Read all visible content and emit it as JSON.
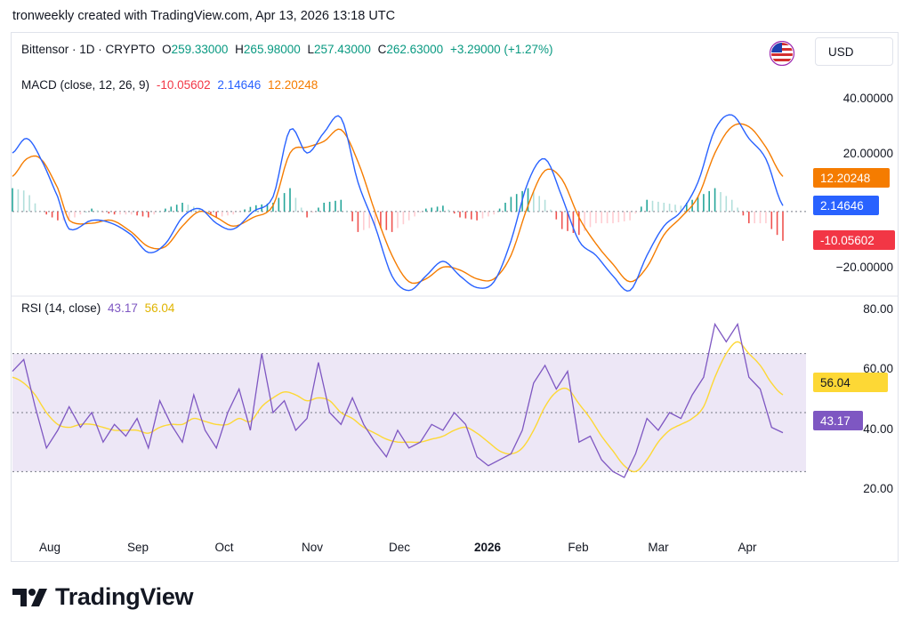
{
  "caption": "tronweekly created with TradingView.com, Apr 13, 2026 13:18 UTC",
  "header": {
    "symbol": "Bittensor · 1D · CRYPTO",
    "open_k": "O",
    "open": "259.33000",
    "high_k": "H",
    "high": "265.98000",
    "low_k": "L",
    "low": "257.43000",
    "close_k": "C",
    "close": "262.63000",
    "change": "+3.29000 (+1.27%)",
    "currency": "USD"
  },
  "colors": {
    "macd_line": "#2962ff",
    "signal_line": "#f57c00",
    "hist_pos_strong": "#26a69a",
    "hist_pos_weak": "#b2dfdb",
    "hist_neg_strong": "#ef5350",
    "hist_neg_weak": "#ffcdd2",
    "rsi_line": "#7e57c2",
    "rsi_ma": "#fdd835",
    "rsi_band": "#ede7f6",
    "up": "#089981",
    "down": "#f23645"
  },
  "macd": {
    "label": "MACD (close, 12, 26, 9)",
    "hist_value": "-10.05602",
    "macd_value": "2.14646",
    "signal_value": "12.20248",
    "axis_labels": [
      "40.00000",
      "20.00000",
      "−20.00000"
    ]
  },
  "rsi": {
    "label": "RSI (14, close)",
    "rsi_value": "43.17",
    "ma_value": "56.04",
    "axis_labels": [
      "80.00",
      "60.00",
      "40.00",
      "20.00"
    ]
  },
  "months": [
    "Aug",
    "Sep",
    "Oct",
    "Nov",
    "Dec",
    "2026",
    "Feb",
    "Mar",
    "Apr"
  ],
  "logo_text": "TradingView",
  "chart_data": [
    {
      "type": "line",
      "title": "MACD (close, 12, 26, 9)",
      "ylim": [
        -28,
        48
      ],
      "x_day_index": [
        0,
        5,
        10,
        16,
        20,
        28,
        35,
        42,
        48,
        54,
        60,
        66,
        72,
        78,
        85,
        92,
        98,
        104,
        110,
        116,
        122,
        128,
        134,
        140,
        146,
        152,
        158,
        164,
        170,
        176,
        182,
        188,
        194,
        200,
        206,
        212,
        218,
        224,
        230,
        236,
        242,
        248,
        254,
        260,
        266,
        272
      ],
      "series": [
        {
          "name": "MACD",
          "values": [
            20,
            25,
            18,
            5,
            -6,
            -3,
            -4,
            -8,
            -14,
            -11,
            -2,
            1,
            -4,
            -6,
            0,
            5,
            28,
            20,
            27,
            32,
            10,
            -5,
            -22,
            -27,
            -22,
            -17,
            -22,
            -26,
            -24,
            -10,
            10,
            18,
            5,
            -10,
            -15,
            -22,
            -27,
            -15,
            -5,
            0,
            10,
            28,
            33,
            25,
            18,
            2
          ],
          "latest": 2.14646
        },
        {
          "name": "Signal",
          "values": [
            12,
            18,
            18,
            8,
            -3,
            -4,
            -3,
            -7,
            -12,
            -12,
            -5,
            0,
            -2,
            -5,
            -2,
            2,
            20,
            22,
            24,
            28,
            17,
            0,
            -15,
            -24,
            -23,
            -19,
            -20,
            -23,
            -23,
            -15,
            2,
            14,
            11,
            -2,
            -11,
            -18,
            -24,
            -19,
            -8,
            -2,
            5,
            20,
            29,
            29,
            22,
            12
          ],
          "latest": 12.20248
        },
        {
          "name": "Histogram",
          "values": [
            8,
            7,
            0,
            -3,
            -3,
            1,
            -1,
            -1,
            -2,
            1,
            3,
            1,
            -2,
            -1,
            2,
            3,
            8,
            -2,
            3,
            4,
            -7,
            -5,
            -7,
            -3,
            1,
            2,
            -2,
            -3,
            -1,
            5,
            8,
            4,
            -6,
            -8,
            -4,
            -4,
            -3,
            4,
            3,
            2,
            5,
            8,
            4,
            -4,
            -4,
            -10
          ],
          "latest": -10.05602
        }
      ]
    },
    {
      "type": "line",
      "title": "RSI (14, close)",
      "ylim": [
        12,
        88
      ],
      "bands": [
        30,
        50,
        70
      ],
      "x_day_index": [
        0,
        4,
        8,
        12,
        16,
        20,
        24,
        28,
        32,
        36,
        40,
        44,
        48,
        52,
        56,
        60,
        64,
        68,
        72,
        76,
        80,
        84,
        88,
        92,
        96,
        100,
        104,
        108,
        112,
        116,
        120,
        124,
        128,
        132,
        136,
        140,
        144,
        148,
        152,
        156,
        160,
        164,
        168,
        172,
        176,
        180,
        184,
        188,
        192,
        196,
        200,
        204,
        208,
        212,
        216,
        220,
        224,
        228,
        232,
        236,
        240,
        244,
        248,
        252,
        256,
        260,
        264,
        268,
        272
      ],
      "series": [
        {
          "name": "RSI",
          "values": [
            64,
            68,
            52,
            38,
            44,
            52,
            45,
            50,
            40,
            46,
            42,
            48,
            38,
            54,
            46,
            40,
            56,
            44,
            38,
            50,
            58,
            44,
            70,
            50,
            54,
            44,
            48,
            67,
            50,
            46,
            55,
            46,
            40,
            35,
            44,
            38,
            40,
            46,
            44,
            50,
            46,
            35,
            32,
            34,
            36,
            44,
            60,
            66,
            58,
            64,
            40,
            42,
            34,
            30,
            28,
            36,
            48,
            44,
            50,
            48,
            56,
            62,
            80,
            74,
            80,
            62,
            58,
            45,
            43.17
          ]
        },
        {
          "name": "RSI-based MA",
          "values": [
            62,
            60,
            56,
            50,
            46,
            45,
            46,
            46,
            45,
            44,
            44,
            44,
            43,
            45,
            46,
            46,
            48,
            47,
            46,
            46,
            48,
            47,
            52,
            55,
            57,
            56,
            54,
            55,
            54,
            50,
            48,
            45,
            43,
            41,
            40,
            40,
            40,
            41,
            42,
            44,
            45,
            43,
            40,
            37,
            36,
            38,
            44,
            52,
            57,
            58,
            53,
            48,
            42,
            37,
            32,
            30,
            34,
            40,
            44,
            46,
            48,
            52,
            62,
            70,
            74,
            70,
            66,
            60,
            56.04
          ]
        }
      ]
    }
  ]
}
